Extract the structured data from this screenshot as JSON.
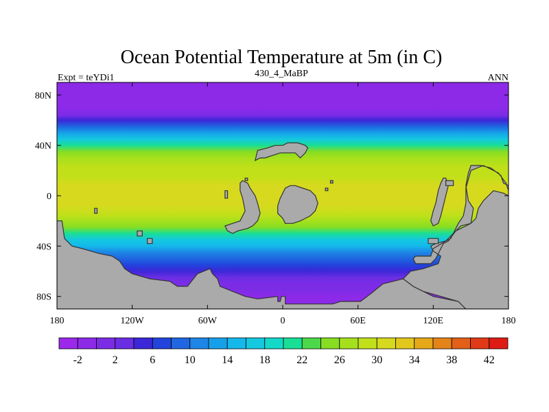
{
  "chart_data": {
    "type": "heatmap",
    "title": "Ocean Potential Temperature at 5m (in C)",
    "subtitle_left": "Expt = teYDi1",
    "subtitle_center": "430_4_MaBP",
    "subtitle_right": "ANN",
    "xlim": [
      -180,
      180
    ],
    "ylim": [
      -90,
      90
    ],
    "x_ticks": [
      {
        "value": -180,
        "label": "180"
      },
      {
        "value": -120,
        "label": "120W"
      },
      {
        "value": -60,
        "label": "60W"
      },
      {
        "value": 0,
        "label": "0"
      },
      {
        "value": 60,
        "label": "60E"
      },
      {
        "value": 120,
        "label": "120E"
      },
      {
        "value": 180,
        "label": "180"
      }
    ],
    "y_ticks": [
      {
        "value": 80,
        "label": "80N"
      },
      {
        "value": 40,
        "label": "40N"
      },
      {
        "value": 0,
        "label": "0"
      },
      {
        "value": -40,
        "label": "40S"
      },
      {
        "value": -80,
        "label": "80S"
      }
    ],
    "colorbar": {
      "levels": [
        -4,
        -2,
        0,
        2,
        4,
        6,
        8,
        10,
        12,
        14,
        16,
        18,
        20,
        22,
        24,
        26,
        28,
        30,
        32,
        34,
        36,
        38,
        40,
        42,
        44
      ],
      "labels": [
        "-2",
        "2",
        "6",
        "10",
        "14",
        "18",
        "22",
        "26",
        "30",
        "34",
        "38",
        "42"
      ],
      "colors": [
        "#9b28ea",
        "#8c2ae8",
        "#7d2ce6",
        "#6a2ee3",
        "#3c27d8",
        "#2244dc",
        "#1f66e0",
        "#1e86e6",
        "#17a0ea",
        "#14b8ea",
        "#14c8e0",
        "#14d8c8",
        "#19de96",
        "#4cd84a",
        "#86dd22",
        "#a6e01c",
        "#c2e01a",
        "#d6d91e",
        "#e2c81c",
        "#e6a818",
        "#e48418",
        "#e26018",
        "#e03a16",
        "#de1c14"
      ]
    },
    "land_color": "#aaaaaa",
    "zonal_mean_temperature": [
      {
        "lat": 88,
        "temp": -1.6
      },
      {
        "lat": 80,
        "temp": -1.4
      },
      {
        "lat": 70,
        "temp": -1.0
      },
      {
        "lat": 64,
        "temp": 0.2
      },
      {
        "lat": 60,
        "temp": 4
      },
      {
        "lat": 55,
        "temp": 9
      },
      {
        "lat": 50,
        "temp": 13
      },
      {
        "lat": 45,
        "temp": 17
      },
      {
        "lat": 40,
        "temp": 21
      },
      {
        "lat": 35,
        "temp": 24
      },
      {
        "lat": 30,
        "temp": 26
      },
      {
        "lat": 22,
        "temp": 28
      },
      {
        "lat": 15,
        "temp": 29.5
      },
      {
        "lat": 8,
        "temp": 30.5
      },
      {
        "lat": 0,
        "temp": 31
      },
      {
        "lat": -8,
        "temp": 30
      },
      {
        "lat": -15,
        "temp": 28.5
      },
      {
        "lat": -20,
        "temp": 27
      },
      {
        "lat": -25,
        "temp": 25
      },
      {
        "lat": -30,
        "temp": 21
      },
      {
        "lat": -35,
        "temp": 17
      },
      {
        "lat": -40,
        "temp": 14
      },
      {
        "lat": -45,
        "temp": 11
      },
      {
        "lat": -50,
        "temp": 9
      },
      {
        "lat": -55,
        "temp": 7
      },
      {
        "lat": -60,
        "temp": 5
      },
      {
        "lat": -65,
        "temp": 3
      },
      {
        "lat": -70,
        "temp": 1.5
      },
      {
        "lat": -75,
        "temp": 0
      },
      {
        "lat": -80,
        "temp": -1
      },
      {
        "lat": -85,
        "temp": -1.6
      }
    ],
    "landmasses": [
      {
        "name": "western-landmass",
        "points": [
          [
            -180,
            -20
          ],
          [
            -176,
            -20
          ],
          [
            -174,
            -34
          ],
          [
            -168,
            -40
          ],
          [
            -160,
            -42
          ],
          [
            -146,
            -46
          ],
          [
            -136,
            -48
          ],
          [
            -130,
            -52
          ],
          [
            -126,
            -58
          ],
          [
            -120,
            -62
          ],
          [
            -106,
            -66
          ],
          [
            -90,
            -68
          ],
          [
            -84,
            -72
          ],
          [
            -76,
            -72
          ],
          [
            -68,
            -62
          ],
          [
            -58,
            -58
          ],
          [
            -56,
            -62
          ],
          [
            -52,
            -66
          ],
          [
            -50,
            -72
          ],
          [
            -40,
            -76
          ],
          [
            -30,
            -80
          ],
          [
            -20,
            -82
          ],
          [
            -4,
            -80
          ],
          [
            -4,
            -84
          ],
          [
            -2,
            -84
          ],
          [
            -1,
            -80
          ],
          [
            2,
            -80
          ],
          [
            2,
            -86
          ],
          [
            40,
            -86
          ],
          [
            46,
            -84
          ],
          [
            62,
            -84
          ],
          [
            70,
            -78
          ],
          [
            80,
            -70
          ],
          [
            96,
            -66
          ],
          [
            104,
            -72
          ],
          [
            112,
            -76
          ],
          [
            120,
            -80
          ],
          [
            140,
            -84
          ],
          [
            146,
            -90
          ],
          [
            -180,
            -90
          ]
        ]
      },
      {
        "name": "eastern-landmass",
        "points": [
          [
            180,
            -20
          ],
          [
            180,
            8
          ],
          [
            176,
            10
          ],
          [
            174,
            16
          ],
          [
            166,
            22
          ],
          [
            158,
            24
          ],
          [
            150,
            24
          ],
          [
            148,
            18
          ],
          [
            146,
            8
          ],
          [
            148,
            -4
          ],
          [
            152,
            -10
          ],
          [
            150,
            -22
          ],
          [
            142,
            -24
          ],
          [
            138,
            -28
          ],
          [
            132,
            -36
          ],
          [
            128,
            -38
          ],
          [
            122,
            -50
          ],
          [
            118,
            -54
          ],
          [
            106,
            -54
          ],
          [
            104,
            -50
          ],
          [
            106,
            -48
          ],
          [
            118,
            -48
          ],
          [
            120,
            -42
          ],
          [
            130,
            -36
          ],
          [
            134,
            -34
          ],
          [
            140,
            -22
          ],
          [
            144,
            -16
          ],
          [
            146,
            -6
          ],
          [
            146,
            6
          ],
          [
            150,
            20
          ],
          [
            160,
            24
          ],
          [
            172,
            18
          ],
          [
            178,
            10
          ],
          [
            180,
            4
          ],
          [
            180,
            -90
          ],
          [
            146,
            -90
          ],
          [
            140,
            -84
          ],
          [
            112,
            -76
          ],
          [
            104,
            -72
          ],
          [
            96,
            -66
          ],
          [
            102,
            -60
          ],
          [
            112,
            -58
          ],
          [
            124,
            -54
          ],
          [
            126,
            -48
          ],
          [
            120,
            -44
          ],
          [
            118,
            -40
          ],
          [
            122,
            -38
          ],
          [
            130,
            -36
          ],
          [
            138,
            -28
          ],
          [
            146,
            -24
          ],
          [
            150,
            -22
          ],
          [
            154,
            -18
          ],
          [
            156,
            -10
          ],
          [
            160,
            -4
          ],
          [
            164,
            0
          ],
          [
            168,
            4
          ],
          [
            176,
            2
          ],
          [
            180,
            0
          ]
        ]
      },
      {
        "name": "central-continent",
        "points": [
          [
            -4,
            -8
          ],
          [
            -2,
            -2
          ],
          [
            0,
            2
          ],
          [
            2,
            6
          ],
          [
            6,
            8
          ],
          [
            10,
            8
          ],
          [
            16,
            6
          ],
          [
            22,
            4
          ],
          [
            26,
            0
          ],
          [
            28,
            -6
          ],
          [
            26,
            -12
          ],
          [
            22,
            -16
          ],
          [
            18,
            -18
          ],
          [
            14,
            -20
          ],
          [
            8,
            -22
          ],
          [
            2,
            -22
          ],
          [
            0,
            -18
          ],
          [
            -4,
            -14
          ]
        ]
      },
      {
        "name": "western-peninsula",
        "points": [
          [
            -34,
            10
          ],
          [
            -32,
            12
          ],
          [
            -28,
            10
          ],
          [
            -26,
            6
          ],
          [
            -22,
            0
          ],
          [
            -20,
            -6
          ],
          [
            -18,
            -14
          ],
          [
            -20,
            -20
          ],
          [
            -24,
            -24
          ],
          [
            -28,
            -26
          ],
          [
            -36,
            -28
          ],
          [
            -40,
            -30
          ],
          [
            -44,
            -28
          ],
          [
            -46,
            -24
          ],
          [
            -40,
            -22
          ],
          [
            -34,
            -20
          ],
          [
            -30,
            -12
          ],
          [
            -32,
            -2
          ],
          [
            -34,
            4
          ]
        ]
      },
      {
        "name": "northern-landmass",
        "points": [
          [
            -20,
            36
          ],
          [
            -12,
            38
          ],
          [
            -6,
            40
          ],
          [
            0,
            40
          ],
          [
            4,
            42
          ],
          [
            12,
            42
          ],
          [
            18,
            40
          ],
          [
            20,
            38
          ],
          [
            18,
            34
          ],
          [
            14,
            30
          ],
          [
            10,
            34
          ],
          [
            4,
            34
          ],
          [
            -2,
            34
          ],
          [
            -8,
            32
          ],
          [
            -14,
            30
          ],
          [
            -18,
            30
          ],
          [
            -22,
            28
          ]
        ]
      },
      {
        "name": "eastern-strip",
        "points": [
          [
            118,
            -20
          ],
          [
            120,
            -12
          ],
          [
            122,
            -6
          ],
          [
            124,
            4
          ],
          [
            126,
            10
          ],
          [
            128,
            14
          ],
          [
            130,
            14
          ],
          [
            132,
            8
          ],
          [
            130,
            0
          ],
          [
            128,
            -8
          ],
          [
            126,
            -16
          ],
          [
            124,
            -22
          ],
          [
            120,
            -24
          ]
        ]
      },
      {
        "name": "small-island-1",
        "points": [
          [
            -46,
            4
          ],
          [
            -44,
            4
          ],
          [
            -44,
            -2
          ],
          [
            -46,
            -2
          ]
        ]
      },
      {
        "name": "small-island-2",
        "points": [
          [
            -150,
            -10
          ],
          [
            -148,
            -10
          ],
          [
            -148,
            -14
          ],
          [
            -150,
            -14
          ]
        ]
      },
      {
        "name": "small-island-3",
        "points": [
          [
            -116,
            -28
          ],
          [
            -112,
            -28
          ],
          [
            -112,
            -32
          ],
          [
            -116,
            -32
          ]
        ]
      },
      {
        "name": "small-island-4",
        "points": [
          [
            -108,
            -34
          ],
          [
            -104,
            -34
          ],
          [
            -104,
            -38
          ],
          [
            -108,
            -38
          ]
        ]
      },
      {
        "name": "small-island-5",
        "points": [
          [
            38,
            12
          ],
          [
            40,
            12
          ],
          [
            40,
            10
          ],
          [
            38,
            10
          ]
        ]
      },
      {
        "name": "small-island-6",
        "points": [
          [
            34,
            6
          ],
          [
            36,
            6
          ],
          [
            36,
            4
          ],
          [
            34,
            4
          ]
        ]
      },
      {
        "name": "small-island-7",
        "points": [
          [
            116,
            -34
          ],
          [
            124,
            -34
          ],
          [
            124,
            -38
          ],
          [
            116,
            -38
          ]
        ]
      },
      {
        "name": "small-island-8",
        "points": [
          [
            130,
            12
          ],
          [
            136,
            12
          ],
          [
            136,
            8
          ],
          [
            130,
            8
          ]
        ]
      },
      {
        "name": "small-island-9",
        "points": [
          [
            -30,
            14
          ],
          [
            -28,
            14
          ],
          [
            -28,
            12
          ],
          [
            -30,
            12
          ]
        ]
      }
    ]
  }
}
